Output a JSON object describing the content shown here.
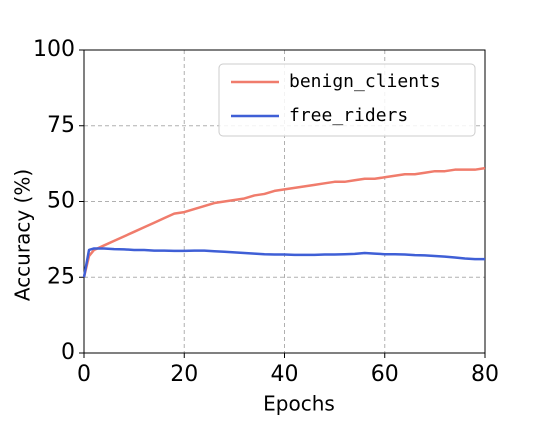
{
  "chart_data": {
    "type": "line",
    "x_label": "Epochs",
    "y_label": "Accuracy (%)",
    "x": [
      0,
      1,
      2,
      4,
      6,
      8,
      10,
      12,
      14,
      16,
      18,
      20,
      22,
      24,
      26,
      28,
      30,
      32,
      34,
      36,
      38,
      40,
      42,
      44,
      46,
      48,
      50,
      52,
      54,
      56,
      58,
      60,
      62,
      64,
      66,
      68,
      70,
      72,
      74,
      76,
      78,
      80
    ],
    "series": [
      {
        "name": "benign_clients",
        "color": "#f07c6c",
        "values": [
          25,
          32,
          34,
          35.5,
          37,
          38.5,
          40,
          41.5,
          43,
          44.5,
          46,
          46.5,
          47.5,
          48.5,
          49.5,
          50,
          50.5,
          51,
          52,
          52.5,
          53.5,
          54,
          54.5,
          55,
          55.5,
          56,
          56.5,
          56.5,
          57,
          57.5,
          57.5,
          58,
          58.5,
          59,
          59,
          59.5,
          60,
          60,
          60.5,
          60.5,
          60.5,
          61
        ]
      },
      {
        "name": "free_riders",
        "color": "#3f5fd6",
        "values": [
          25,
          34,
          34.5,
          34.5,
          34.3,
          34.2,
          34,
          34,
          33.8,
          33.8,
          33.7,
          33.7,
          33.8,
          33.8,
          33.6,
          33.4,
          33.2,
          33,
          32.8,
          32.6,
          32.5,
          32.5,
          32.4,
          32.4,
          32.4,
          32.5,
          32.5,
          32.6,
          32.7,
          33,
          32.8,
          32.6,
          32.6,
          32.5,
          32.3,
          32.2,
          32,
          31.8,
          31.5,
          31.2,
          31,
          31
        ]
      }
    ],
    "xlim": [
      0,
      80
    ],
    "xticks": [
      0,
      20,
      40,
      60,
      80
    ],
    "ylim": [
      0,
      100
    ],
    "yticks": [
      0,
      25,
      50,
      75,
      100
    ],
    "grid": true,
    "legend": "upper right"
  }
}
